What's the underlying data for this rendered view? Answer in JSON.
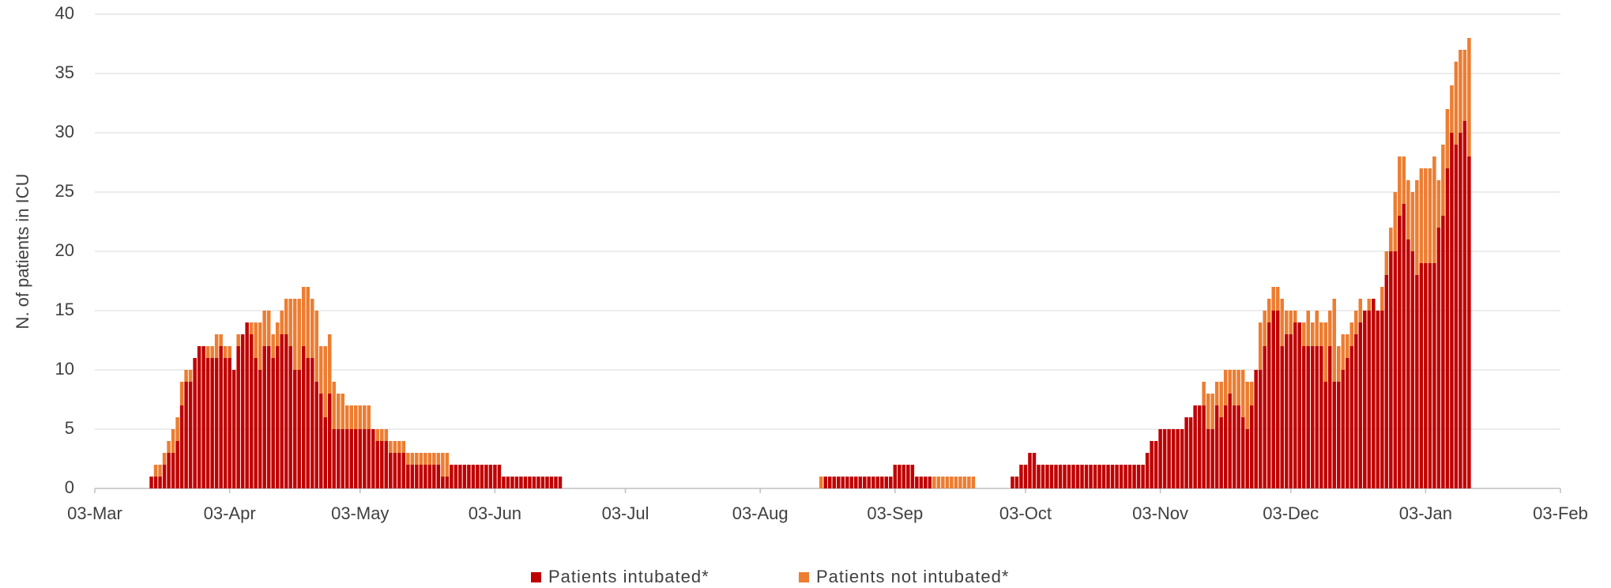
{
  "chart_data": {
    "type": "stacked_bar",
    "y_label": "N. of patients in ICU",
    "categories": [
      "03-Mar",
      null,
      null,
      null,
      null,
      null,
      null,
      null,
      null,
      null,
      null,
      null,
      null,
      null,
      null,
      null,
      null,
      null,
      null,
      null,
      null,
      null,
      null,
      null,
      null,
      null,
      null,
      null,
      null,
      null,
      null,
      "03-Apr",
      null,
      null,
      null,
      null,
      null,
      null,
      null,
      null,
      null,
      null,
      null,
      null,
      null,
      null,
      null,
      null,
      null,
      null,
      null,
      null,
      null,
      null,
      null,
      null,
      null,
      null,
      null,
      null,
      null,
      "03-May",
      null,
      null,
      null,
      null,
      null,
      null,
      null,
      null,
      null,
      null,
      null,
      null,
      null,
      null,
      null,
      null,
      null,
      null,
      null,
      null,
      null,
      null,
      null,
      null,
      null,
      null,
      null,
      null,
      null,
      null,
      "03-Jun",
      null,
      null,
      null,
      null,
      null,
      null,
      null,
      null,
      null,
      null,
      null,
      null,
      null,
      null,
      null,
      null,
      null,
      null,
      null,
      null,
      null,
      null,
      null,
      null,
      null,
      null,
      null,
      null,
      null,
      "03-Jul",
      null,
      null,
      null,
      null,
      null,
      null,
      null,
      null,
      null,
      null,
      null,
      null,
      null,
      null,
      null,
      null,
      null,
      null,
      null,
      null,
      null,
      null,
      null,
      null,
      null,
      null,
      null,
      null,
      null,
      null,
      "03-Aug",
      null,
      null,
      null,
      null,
      null,
      null,
      null,
      null,
      null,
      null,
      null,
      null,
      null,
      null,
      null,
      null,
      null,
      null,
      null,
      null,
      null,
      null,
      null,
      null,
      null,
      null,
      null,
      null,
      null,
      null,
      "03-Sep",
      null,
      null,
      null,
      null,
      null,
      null,
      null,
      null,
      null,
      null,
      null,
      null,
      null,
      null,
      null,
      null,
      null,
      null,
      null,
      null,
      null,
      null,
      null,
      null,
      null,
      null,
      null,
      null,
      null,
      "03-Oct",
      null,
      null,
      null,
      null,
      null,
      null,
      null,
      null,
      null,
      null,
      null,
      null,
      null,
      null,
      null,
      null,
      null,
      null,
      null,
      null,
      null,
      null,
      null,
      null,
      null,
      null,
      null,
      null,
      null,
      null,
      "03-Nov",
      null,
      null,
      null,
      null,
      null,
      null,
      null,
      null,
      null,
      null,
      null,
      null,
      null,
      null,
      null,
      null,
      null,
      null,
      null,
      null,
      null,
      null,
      null,
      null,
      null,
      null,
      null,
      null,
      null,
      "03-Dec",
      null,
      null,
      null,
      null,
      null,
      null,
      null,
      null,
      null,
      null,
      null,
      null,
      null,
      null,
      null,
      null,
      null,
      null,
      null,
      null,
      null,
      null,
      null,
      null,
      null,
      null,
      null,
      null,
      null,
      null,
      "03-Jan",
      null,
      null,
      null,
      null,
      null,
      null,
      null,
      null,
      null,
      null,
      null,
      null,
      null,
      null,
      null,
      null,
      null,
      null,
      null,
      null,
      null,
      null,
      null,
      null,
      null,
      null,
      null,
      null,
      null,
      null,
      "03-Feb"
    ],
    "series": [
      {
        "name": "Patients intubated*",
        "color": "#c00000",
        "values": [
          null,
          null,
          null,
          null,
          null,
          null,
          null,
          null,
          null,
          null,
          null,
          null,
          null,
          1,
          1,
          1,
          2,
          3,
          3,
          4,
          7,
          9,
          9,
          11,
          12,
          12,
          11,
          11,
          11,
          12,
          11,
          11,
          10,
          12,
          13,
          14,
          13,
          11,
          10,
          12,
          12,
          11,
          12,
          13,
          13,
          12,
          10,
          10,
          12,
          11,
          11,
          9,
          8,
          6,
          8,
          5,
          5,
          5,
          5,
          5,
          5,
          5,
          5,
          5,
          5,
          4,
          4,
          4,
          3,
          3,
          3,
          3,
          2,
          2,
          2,
          2,
          2,
          2,
          2,
          2,
          1,
          1,
          2,
          2,
          2,
          2,
          2,
          2,
          2,
          2,
          2,
          2,
          2,
          2,
          1,
          1,
          1,
          1,
          1,
          1,
          1,
          1,
          1,
          1,
          1,
          1,
          1,
          1,
          null,
          null,
          null,
          null,
          null,
          null,
          null,
          null,
          null,
          null,
          null,
          null,
          null,
          null,
          null,
          null,
          null,
          null,
          null,
          null,
          null,
          null,
          null,
          null,
          null,
          null,
          null,
          null,
          null,
          null,
          null,
          null,
          null,
          null,
          null,
          null,
          null,
          null,
          null,
          null,
          null,
          null,
          null,
          null,
          null,
          null,
          null,
          null,
          null,
          null,
          null,
          null,
          null,
          null,
          null,
          null,
          null,
          null,
          null,
          0,
          1,
          1,
          1,
          1,
          1,
          1,
          1,
          1,
          1,
          1,
          1,
          1,
          1,
          1,
          1,
          1,
          2,
          2,
          2,
          2,
          2,
          1,
          1,
          1,
          1,
          0,
          0,
          0,
          0,
          0,
          0,
          0,
          0,
          0,
          0,
          null,
          null,
          null,
          null,
          null,
          null,
          null,
          null,
          1,
          1,
          2,
          2,
          3,
          3,
          2,
          2,
          2,
          2,
          2,
          2,
          2,
          2,
          2,
          2,
          2,
          2,
          2,
          2,
          2,
          2,
          2,
          2,
          2,
          2,
          2,
          2,
          2,
          2,
          2,
          3,
          4,
          4,
          5,
          5,
          5,
          5,
          5,
          5,
          6,
          6,
          7,
          7,
          7,
          5,
          5,
          7,
          6,
          7,
          8,
          7,
          7,
          6,
          5,
          7,
          10,
          10,
          12,
          14,
          15,
          15,
          12,
          13,
          13,
          14,
          14,
          12,
          12,
          12,
          12,
          12,
          9,
          12,
          9,
          9,
          10,
          11,
          12,
          13,
          14,
          15,
          15,
          16,
          15,
          15,
          18,
          20,
          20,
          23,
          24,
          21,
          20,
          18,
          19,
          19,
          19,
          19,
          22,
          23,
          27,
          30,
          29,
          30,
          31,
          28,
          null,
          null,
          null,
          null,
          null,
          null,
          null,
          null,
          null,
          null,
          null,
          null,
          null,
          null,
          null,
          null,
          null,
          null,
          null,
          null,
          null
        ]
      },
      {
        "name": "Patients not intubated*",
        "color": "#ed7d31",
        "values": [
          null,
          null,
          null,
          null,
          null,
          null,
          null,
          null,
          null,
          null,
          null,
          null,
          null,
          0,
          1,
          1,
          1,
          1,
          2,
          2,
          2,
          1,
          1,
          0,
          0,
          0,
          1,
          1,
          2,
          1,
          1,
          1,
          0,
          1,
          0,
          0,
          1,
          3,
          4,
          3,
          3,
          2,
          2,
          2,
          3,
          4,
          6,
          6,
          5,
          6,
          5,
          6,
          4,
          6,
          5,
          4,
          3,
          3,
          2,
          2,
          2,
          2,
          2,
          2,
          0,
          1,
          1,
          1,
          1,
          1,
          1,
          1,
          1,
          1,
          1,
          1,
          1,
          1,
          1,
          1,
          2,
          2,
          0,
          0,
          0,
          0,
          0,
          0,
          0,
          0,
          0,
          0,
          0,
          0,
          0,
          0,
          0,
          0,
          0,
          0,
          0,
          0,
          0,
          0,
          0,
          0,
          0,
          0,
          null,
          null,
          null,
          null,
          null,
          null,
          null,
          null,
          null,
          null,
          null,
          null,
          null,
          null,
          null,
          null,
          null,
          null,
          null,
          null,
          null,
          null,
          null,
          null,
          null,
          null,
          null,
          null,
          null,
          null,
          null,
          null,
          null,
          null,
          null,
          null,
          null,
          null,
          null,
          null,
          null,
          null,
          null,
          null,
          null,
          null,
          null,
          null,
          null,
          null,
          null,
          null,
          null,
          null,
          null,
          null,
          null,
          null,
          null,
          1,
          0,
          0,
          0,
          0,
          0,
          0,
          0,
          0,
          0,
          0,
          0,
          0,
          0,
          0,
          0,
          0,
          0,
          0,
          0,
          0,
          0,
          0,
          0,
          0,
          0,
          1,
          1,
          1,
          1,
          1,
          1,
          1,
          1,
          1,
          1,
          null,
          null,
          null,
          null,
          null,
          null,
          null,
          null,
          0,
          0,
          0,
          0,
          0,
          0,
          0,
          0,
          0,
          0,
          0,
          0,
          0,
          0,
          0,
          0,
          0,
          0,
          0,
          0,
          0,
          0,
          0,
          0,
          0,
          0,
          0,
          0,
          0,
          0,
          0,
          0,
          0,
          0,
          0,
          0,
          0,
          0,
          0,
          0,
          0,
          0,
          0,
          0,
          2,
          3,
          3,
          2,
          3,
          3,
          2,
          3,
          3,
          4,
          4,
          2,
          0,
          4,
          3,
          2,
          2,
          2,
          4,
          2,
          2,
          1,
          0,
          2,
          3,
          2,
          3,
          2,
          5,
          3,
          7,
          3,
          3,
          2,
          2,
          2,
          2,
          0,
          1,
          0,
          0,
          2,
          2,
          2,
          5,
          5,
          4,
          5,
          5,
          8,
          8,
          8,
          8,
          9,
          4,
          6,
          5,
          4,
          7,
          7,
          6,
          10,
          null,
          null,
          null,
          null,
          null,
          null,
          null,
          null,
          null,
          null,
          null,
          null,
          null,
          null,
          null,
          null,
          null,
          null,
          null,
          null,
          null
        ]
      }
    ],
    "ylim": [
      0,
      40
    ],
    "yticks": [
      0,
      5,
      10,
      15,
      20,
      25,
      30,
      35,
      40
    ],
    "grid": true,
    "stacked": true,
    "legend": "bottom"
  }
}
